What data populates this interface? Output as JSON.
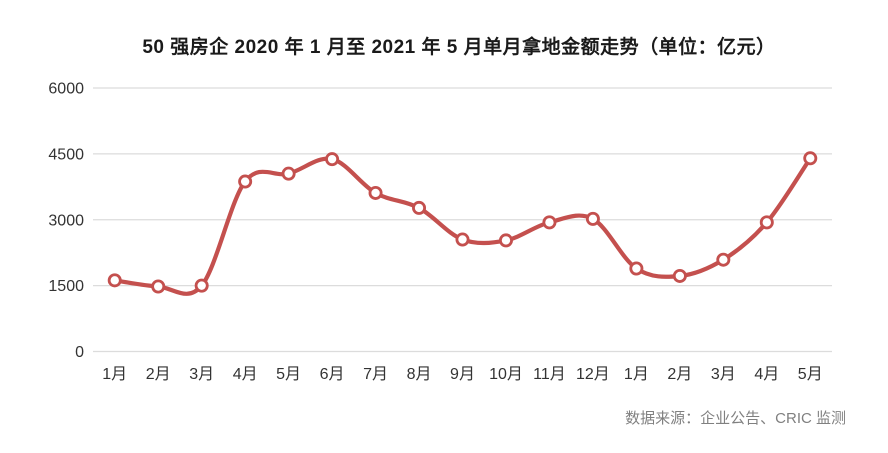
{
  "chart_data": {
    "type": "line",
    "title": "50 强房企 2020 年 1 月至 2021 年 5 月单月拿地金额走势（单位：亿元）",
    "source": "数据来源：企业公告、CRIC 监测",
    "categories": [
      "1月",
      "2月",
      "3月",
      "4月",
      "5月",
      "6月",
      "7月",
      "8月",
      "9月",
      "10月",
      "11月",
      "12月",
      "1月",
      "2月",
      "3月",
      "4月",
      "5月"
    ],
    "values": [
      1620,
      1480,
      1500,
      3870,
      4050,
      4380,
      3610,
      3270,
      2550,
      2530,
      2940,
      3020,
      1890,
      1720,
      2090,
      2940,
      4400
    ],
    "yticks": [
      0,
      1500,
      3000,
      4500,
      6000
    ],
    "ylim": [
      0,
      6000
    ],
    "xlabel": "",
    "ylabel": "",
    "smooth": true,
    "legend_position": "none",
    "grid": "horizontal-only",
    "colors": {
      "line": "#c4504e",
      "marker_fill": "#ffffff",
      "gridline": "#dcdcdc",
      "axis_labels": "#333333",
      "title": "#1a1a1a",
      "source_text": "#808080",
      "background": "#ffffff"
    }
  }
}
